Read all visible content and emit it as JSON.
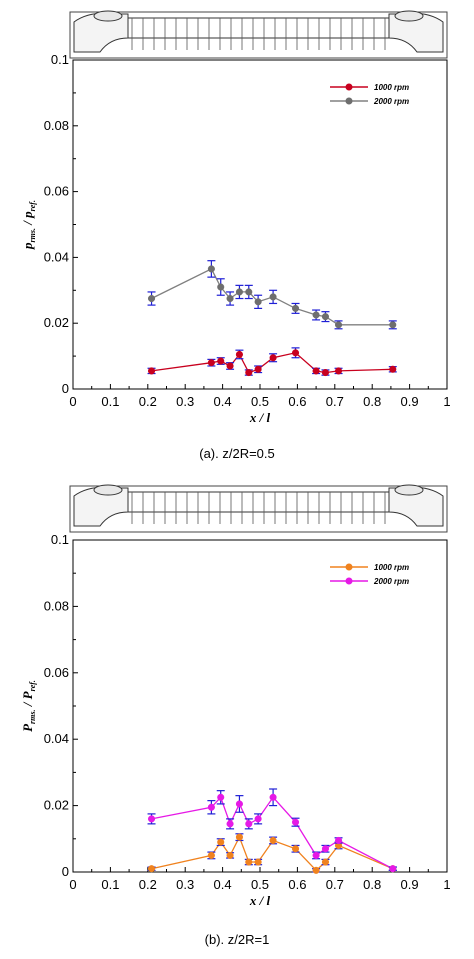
{
  "chart_data": [
    {
      "type": "line",
      "caption": "(a). z/2R=0.5",
      "xlabel": "x / l",
      "ylabel": "p_rms. / p_ref.",
      "ylabel_main": "p",
      "ylabel_sub1": "rms.",
      "ylabel_sep": " /",
      "ylabel_sub2": "ref.",
      "xlim": [
        0,
        1
      ],
      "ylim": [
        0,
        0.1
      ],
      "xticks": [
        0,
        0.1,
        0.2,
        0.3,
        0.4,
        0.5,
        0.6,
        0.7,
        0.8,
        0.9,
        1
      ],
      "xtick_labels": [
        "0",
        "0.1",
        "0.2",
        "0.3",
        "0.4",
        "0.5",
        "0.6",
        "0.7",
        "0.8",
        "0.9",
        "1"
      ],
      "yticks": [
        0,
        0.02,
        0.04,
        0.06,
        0.08,
        0.1
      ],
      "ytick_labels": [
        "0",
        "0.02",
        "0.04",
        "0.06",
        "0.08",
        "0.1"
      ],
      "grid": false,
      "legend_position": "top-right",
      "errorbar_color": "#1f1fd6",
      "series": [
        {
          "name": "1000 rpm",
          "color": "#c8001e",
          "marker_color": "#c8001e",
          "x": [
            0.21,
            0.37,
            0.395,
            0.42,
            0.445,
            0.47,
            0.495,
            0.535,
            0.595,
            0.65,
            0.675,
            0.71,
            0.855
          ],
          "y": [
            0.0055,
            0.008,
            0.0085,
            0.007,
            0.0105,
            0.005,
            0.006,
            0.0095,
            0.011,
            0.0055,
            0.005,
            0.0055,
            0.006
          ],
          "err": [
            0.0008,
            0.001,
            0.001,
            0.001,
            0.0013,
            0.0008,
            0.001,
            0.0012,
            0.0015,
            0.0008,
            0.0008,
            0.0008,
            0.0008
          ]
        },
        {
          "name": "2000 rpm",
          "color": "#808080",
          "marker_color": "#6e6e6e",
          "x": [
            0.21,
            0.37,
            0.395,
            0.42,
            0.445,
            0.47,
            0.495,
            0.535,
            0.595,
            0.65,
            0.675,
            0.71,
            0.855
          ],
          "y": [
            0.0275,
            0.0365,
            0.031,
            0.0275,
            0.0295,
            0.0295,
            0.0265,
            0.028,
            0.0245,
            0.0225,
            0.022,
            0.0195,
            0.0195
          ],
          "err": [
            0.002,
            0.0025,
            0.0025,
            0.002,
            0.002,
            0.002,
            0.002,
            0.002,
            0.0015,
            0.0015,
            0.0015,
            0.0012,
            0.0012
          ]
        }
      ]
    },
    {
      "type": "line",
      "caption": "(b). z/2R=1",
      "xlabel": "x / l",
      "ylabel": "P_rms. / P_ref.",
      "ylabel_main": "P",
      "ylabel_sub1": "rms.",
      "ylabel_sep": " /",
      "ylabel_sub2": "ref.",
      "xlim": [
        0,
        1
      ],
      "ylim": [
        0,
        0.1
      ],
      "xticks": [
        0,
        0.1,
        0.2,
        0.3,
        0.4,
        0.5,
        0.6,
        0.7,
        0.8,
        0.9,
        1
      ],
      "xtick_labels": [
        "0",
        "0.1",
        "0.2",
        "0.3",
        "0.4",
        "0.5",
        "0.6",
        "0.7",
        "0.8",
        "0.9",
        "1"
      ],
      "yticks": [
        0,
        0.02,
        0.04,
        0.06,
        0.08,
        0.1
      ],
      "ytick_labels": [
        "0",
        "0.02",
        "0.04",
        "0.06",
        "0.08",
        "0.1"
      ],
      "grid": false,
      "legend_position": "top-right",
      "errorbar_color": "#1f1fd6",
      "series": [
        {
          "name": "1000 rpm",
          "color": "#f0821e",
          "marker_color": "#f0821e",
          "x": [
            0.21,
            0.37,
            0.395,
            0.42,
            0.445,
            0.47,
            0.495,
            0.535,
            0.595,
            0.65,
            0.675,
            0.71,
            0.855
          ],
          "y": [
            0.001,
            0.005,
            0.009,
            0.005,
            0.0105,
            0.003,
            0.003,
            0.0095,
            0.007,
            0.0005,
            0.003,
            0.008,
            0.001
          ],
          "err": [
            0.0005,
            0.001,
            0.001,
            0.0008,
            0.001,
            0.0008,
            0.0008,
            0.001,
            0.001,
            0.0005,
            0.0008,
            0.001,
            0.0005
          ]
        },
        {
          "name": "2000 rpm",
          "color": "#e619e6",
          "marker_color": "#e619e6",
          "x": [
            0.21,
            0.37,
            0.395,
            0.42,
            0.445,
            0.47,
            0.495,
            0.535,
            0.595,
            0.65,
            0.675,
            0.71,
            0.855
          ],
          "y": [
            0.016,
            0.0195,
            0.0225,
            0.0145,
            0.0205,
            0.0145,
            0.016,
            0.0225,
            0.015,
            0.005,
            0.007,
            0.0095,
            0.001
          ],
          "err": [
            0.0015,
            0.002,
            0.002,
            0.0015,
            0.0025,
            0.0015,
            0.0015,
            0.0025,
            0.0012,
            0.001,
            0.001,
            0.0008,
            0.0005
          ]
        }
      ]
    }
  ]
}
